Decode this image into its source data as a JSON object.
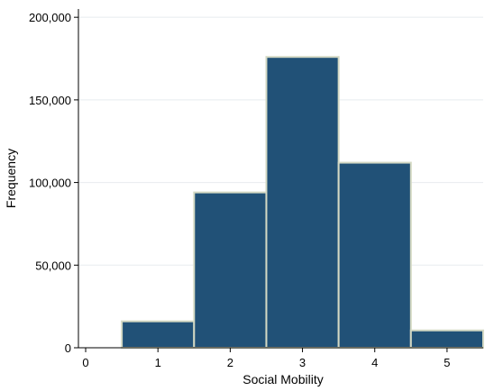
{
  "chart_data": {
    "type": "bar",
    "title": "",
    "xlabel": "Social Mobility",
    "ylabel": "Frequency",
    "categories": [
      "1",
      "2",
      "3",
      "4",
      "5"
    ],
    "x": [
      1,
      2,
      3,
      4,
      5
    ],
    "values": [
      16000,
      94000,
      176000,
      112000,
      10500
    ],
    "xlim": [
      -0.1,
      5.5
    ],
    "ylim": [
      0,
      205000
    ],
    "x_ticks": [
      0,
      1,
      2,
      3,
      4,
      5
    ],
    "x_tick_labels": [
      "0",
      "1",
      "2",
      "3",
      "4",
      "5"
    ],
    "y_ticks": [
      0,
      50000,
      100000,
      150000,
      200000
    ],
    "y_tick_labels": [
      "0",
      "50,000",
      "100,000",
      "150,000",
      "200,000"
    ],
    "grid": true,
    "colors": {
      "bar_fill": "#215177",
      "bar_stroke": "#d4d9c4",
      "grid": "#e8ecef",
      "axis": "#000000"
    }
  }
}
